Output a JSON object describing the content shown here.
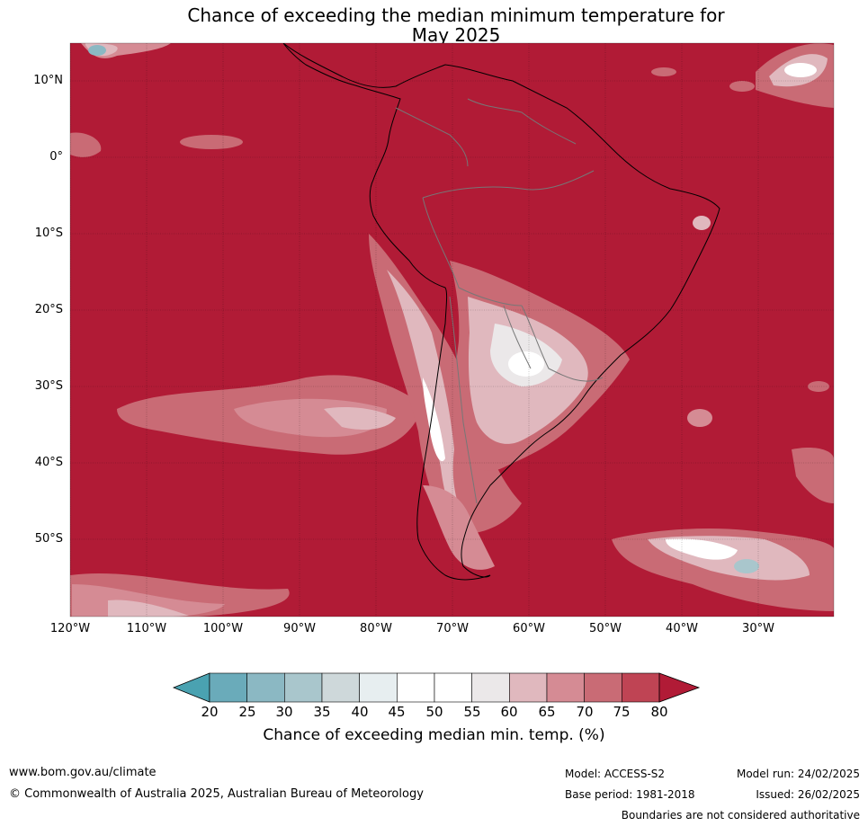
{
  "title": {
    "line1": "Chance of exceeding the median minimum temperature for",
    "line2": "May 2025"
  },
  "map": {
    "region": "South America",
    "dominant_color": "#b11b36",
    "latitude_labels": [
      "10°N",
      "0°",
      "10°S",
      "20°S",
      "30°S",
      "40°S",
      "50°S"
    ],
    "longitude_labels": [
      "120°W",
      "110°W",
      "100°W",
      "90°W",
      "80°W",
      "70°W",
      "60°W",
      "50°W",
      "40°W",
      "30°W"
    ]
  },
  "colorbar": {
    "ticks": [
      "20",
      "25",
      "30",
      "35",
      "40",
      "45",
      "50",
      "55",
      "60",
      "65",
      "70",
      "75",
      "80"
    ],
    "colors": [
      "#4aa2b1",
      "#6aabba",
      "#8bb8c3",
      "#a9c6cc",
      "#ced8da",
      "#e7eef0",
      "#ffffff",
      "#ffffff",
      "#ebe8e9",
      "#e0b8be",
      "#d58b94",
      "#c96b75",
      "#bf4454",
      "#b11b36"
    ],
    "label": "Chance of exceeding median min. temp. (%)"
  },
  "footer": {
    "website": "www.bom.gov.au/climate",
    "copyright": "© Commonwealth of Australia 2025, Australian Bureau of Meteorology",
    "model": "Model: ACCESS-S2",
    "base_period": "Base period: 1981-2018",
    "model_run": "Model run: 24/02/2025",
    "issued": "Issued: 26/02/2025",
    "disclaimer": "Boundaries are not considered authoritative"
  }
}
